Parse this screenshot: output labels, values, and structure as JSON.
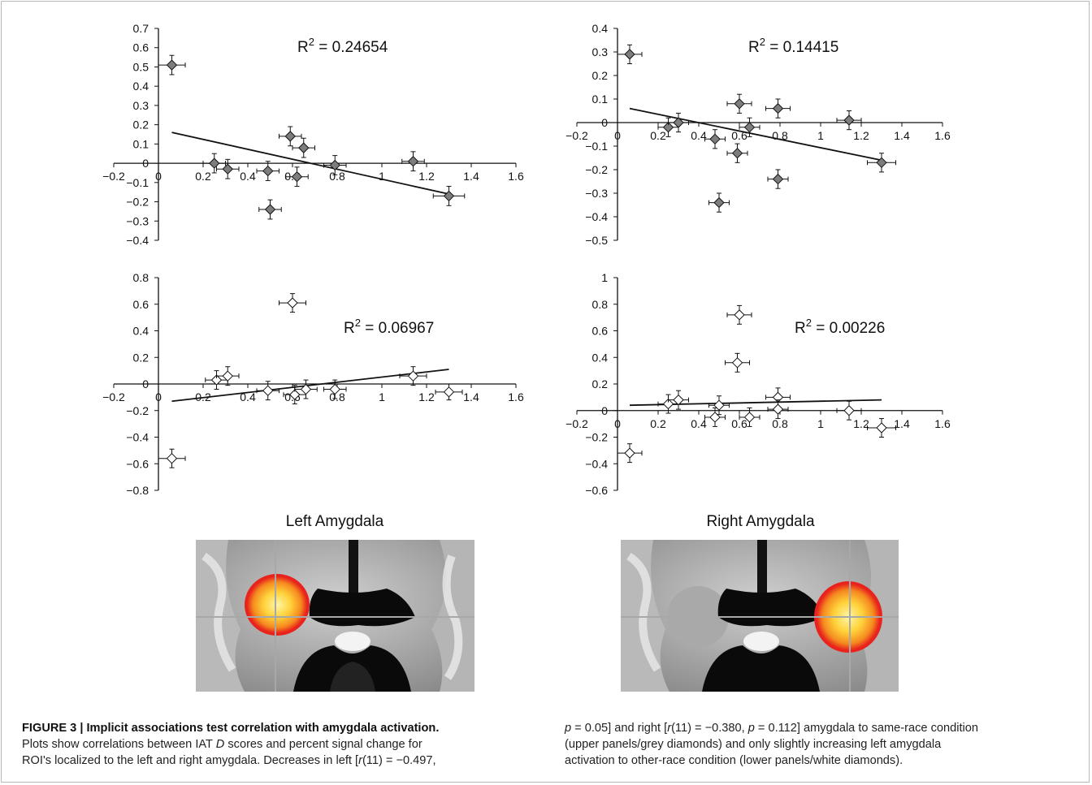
{
  "figure": {
    "caption_title": "FIGURE 3 | Implicit associations test correlation with amygdala activation.",
    "caption_col1": [
      "Plots show correlations between IAT ",
      "D",
      " scores and percent signal change for",
      "ROI's localized to the left and right amygdala. Decreases in left [",
      "r",
      "(11) = −0.497,"
    ],
    "caption_col2": [
      "p",
      " = 0.05] and right [",
      "r",
      "(11) = −0.380, ",
      "p",
      " = 0.112] amygdala to same-race condition",
      "(upper panels/grey diamonds) and only slightly increasing left amygdala",
      "activation to other-race condition (lower panels/white diamonds)."
    ],
    "left_label": "Left Amygdala",
    "right_label": "Right Amygdala",
    "colors": {
      "grey_marker": "#7d7d7d",
      "white_marker": "#ffffff",
      "activation_core": "#ffe25a",
      "activation_edge": "#e8231d"
    }
  },
  "chart_data": [
    {
      "type": "scatter",
      "panel": "upper-left",
      "r2_label": "R",
      "r2_value": " = 0.24654",
      "marker": "grey-diamond",
      "xlim": [
        -0.2,
        1.6
      ],
      "ylim": [
        -0.4,
        0.7
      ],
      "xticks": [
        "−0.2",
        "0",
        "0.2",
        "0.4",
        "0.6",
        "0.8",
        "1",
        "1.2",
        "1.4",
        "1.6"
      ],
      "yticks": [
        "0.7",
        "0.6",
        "0.5",
        "0.4",
        "0.3",
        "0.2",
        "0.1",
        "0",
        "−0.1",
        "−0.2",
        "−0.3",
        "−0.4"
      ],
      "points": [
        {
          "x": 0.06,
          "y": 0.51,
          "xerr": 0.06,
          "yerr": 0.05
        },
        {
          "x": 0.25,
          "y": 0.0,
          "xerr": 0.05,
          "yerr": 0.05
        },
        {
          "x": 0.31,
          "y": -0.03,
          "xerr": 0.05,
          "yerr": 0.05
        },
        {
          "x": 0.49,
          "y": -0.04,
          "xerr": 0.05,
          "yerr": 0.05
        },
        {
          "x": 0.5,
          "y": -0.24,
          "xerr": 0.05,
          "yerr": 0.05
        },
        {
          "x": 0.59,
          "y": 0.14,
          "xerr": 0.05,
          "yerr": 0.05
        },
        {
          "x": 0.62,
          "y": -0.07,
          "xerr": 0.05,
          "yerr": 0.05
        },
        {
          "x": 0.65,
          "y": 0.08,
          "xerr": 0.05,
          "yerr": 0.05
        },
        {
          "x": 0.79,
          "y": -0.01,
          "xerr": 0.05,
          "yerr": 0.05
        },
        {
          "x": 1.14,
          "y": 0.01,
          "xerr": 0.05,
          "yerr": 0.05
        },
        {
          "x": 1.3,
          "y": -0.17,
          "xerr": 0.07,
          "yerr": 0.05
        }
      ],
      "trend": {
        "x": [
          0.06,
          1.3
        ],
        "y": [
          0.16,
          -0.16
        ]
      }
    },
    {
      "type": "scatter",
      "panel": "upper-right",
      "r2_label": "R",
      "r2_value": " = 0.14415",
      "marker": "grey-diamond",
      "xlim": [
        -0.2,
        1.6
      ],
      "ylim": [
        -0.5,
        0.4
      ],
      "xticks": [
        "−0.2",
        "0",
        "0.2",
        "0.4",
        "0.6",
        "0.8",
        "1",
        "1.2",
        "1.4",
        "1.6"
      ],
      "yticks": [
        "0.4",
        "0.3",
        "0.2",
        "0.1",
        "0",
        "−0.1",
        "−0.2",
        "−0.3",
        "−0.4",
        "−0.5"
      ],
      "points": [
        {
          "x": 0.06,
          "y": 0.29,
          "xerr": 0.06,
          "yerr": 0.04
        },
        {
          "x": 0.25,
          "y": -0.02,
          "xerr": 0.05,
          "yerr": 0.04
        },
        {
          "x": 0.3,
          "y": 0.0,
          "xerr": 0.05,
          "yerr": 0.04
        },
        {
          "x": 0.48,
          "y": -0.07,
          "xerr": 0.05,
          "yerr": 0.04
        },
        {
          "x": 0.5,
          "y": -0.34,
          "xerr": 0.05,
          "yerr": 0.04
        },
        {
          "x": 0.6,
          "y": 0.08,
          "xerr": 0.06,
          "yerr": 0.04
        },
        {
          "x": 0.59,
          "y": -0.13,
          "xerr": 0.05,
          "yerr": 0.04
        },
        {
          "x": 0.65,
          "y": -0.02,
          "xerr": 0.05,
          "yerr": 0.04
        },
        {
          "x": 0.79,
          "y": 0.06,
          "xerr": 0.06,
          "yerr": 0.04
        },
        {
          "x": 0.79,
          "y": -0.24,
          "xerr": 0.05,
          "yerr": 0.04
        },
        {
          "x": 1.14,
          "y": 0.01,
          "xerr": 0.06,
          "yerr": 0.04
        },
        {
          "x": 1.3,
          "y": -0.17,
          "xerr": 0.07,
          "yerr": 0.04
        }
      ],
      "trend": {
        "x": [
          0.06,
          1.3
        ],
        "y": [
          0.06,
          -0.16
        ]
      }
    },
    {
      "type": "scatter",
      "panel": "lower-left",
      "r2_label": "R",
      "r2_value": " = 0.06967",
      "marker": "white-diamond",
      "xlim": [
        -0.2,
        1.6
      ],
      "ylim": [
        -0.8,
        0.8
      ],
      "xticks": [
        "−0.2",
        "0",
        "0.2",
        "0.4",
        "0.6",
        "0.8",
        "1",
        "1.2",
        "1.4",
        "1.6"
      ],
      "yticks": [
        "0.8",
        "0.6",
        "0.4",
        "0.2",
        "0",
        "−0.2",
        "−0.4",
        "−0.6",
        "−0.8"
      ],
      "points": [
        {
          "x": 0.06,
          "y": -0.56,
          "xerr": 0.06,
          "yerr": 0.07
        },
        {
          "x": 0.26,
          "y": 0.03,
          "xerr": 0.05,
          "yerr": 0.07
        },
        {
          "x": 0.31,
          "y": 0.06,
          "xerr": 0.05,
          "yerr": 0.07
        },
        {
          "x": 0.49,
          "y": -0.05,
          "xerr": 0.05,
          "yerr": 0.07
        },
        {
          "x": 0.6,
          "y": 0.61,
          "xerr": 0.06,
          "yerr": 0.07
        },
        {
          "x": 0.61,
          "y": -0.08,
          "xerr": 0.05,
          "yerr": 0.07
        },
        {
          "x": 0.66,
          "y": -0.04,
          "xerr": 0.05,
          "yerr": 0.07
        },
        {
          "x": 0.79,
          "y": -0.04,
          "xerr": 0.05,
          "yerr": 0.07
        },
        {
          "x": 1.14,
          "y": 0.06,
          "xerr": 0.06,
          "yerr": 0.07
        },
        {
          "x": 1.3,
          "y": -0.06,
          "xerr": 0.06,
          "yerr": 0.06
        }
      ],
      "trend": {
        "x": [
          0.06,
          1.3
        ],
        "y": [
          -0.13,
          0.11
        ]
      }
    },
    {
      "type": "scatter",
      "panel": "lower-right",
      "r2_label": "R",
      "r2_value": " = 0.00226",
      "marker": "white-diamond",
      "xlim": [
        -0.2,
        1.6
      ],
      "ylim": [
        -0.6,
        1.0
      ],
      "xticks": [
        "−0.2",
        "0",
        "0.2",
        "0.4",
        "0.6",
        "0.8",
        "1",
        "1.2",
        "1.4",
        "1.6"
      ],
      "yticks": [
        "1",
        "0.8",
        "0.6",
        "0.4",
        "0.2",
        "0",
        "−0.2",
        "−0.4",
        "−0.6"
      ],
      "points": [
        {
          "x": 0.06,
          "y": -0.32,
          "xerr": 0.06,
          "yerr": 0.07
        },
        {
          "x": 0.25,
          "y": 0.05,
          "xerr": 0.05,
          "yerr": 0.07
        },
        {
          "x": 0.3,
          "y": 0.08,
          "xerr": 0.05,
          "yerr": 0.07
        },
        {
          "x": 0.48,
          "y": -0.05,
          "xerr": 0.05,
          "yerr": 0.07
        },
        {
          "x": 0.5,
          "y": 0.04,
          "xerr": 0.05,
          "yerr": 0.07
        },
        {
          "x": 0.6,
          "y": 0.72,
          "xerr": 0.06,
          "yerr": 0.07
        },
        {
          "x": 0.59,
          "y": 0.36,
          "xerr": 0.06,
          "yerr": 0.07
        },
        {
          "x": 0.65,
          "y": -0.05,
          "xerr": 0.05,
          "yerr": 0.07
        },
        {
          "x": 0.79,
          "y": 0.1,
          "xerr": 0.06,
          "yerr": 0.07
        },
        {
          "x": 0.79,
          "y": 0.01,
          "xerr": 0.05,
          "yerr": 0.07
        },
        {
          "x": 1.14,
          "y": 0.0,
          "xerr": 0.06,
          "yerr": 0.07
        },
        {
          "x": 1.3,
          "y": -0.13,
          "xerr": 0.07,
          "yerr": 0.07
        }
      ],
      "trend": {
        "x": [
          0.06,
          1.3
        ],
        "y": [
          0.04,
          0.08
        ]
      }
    }
  ]
}
